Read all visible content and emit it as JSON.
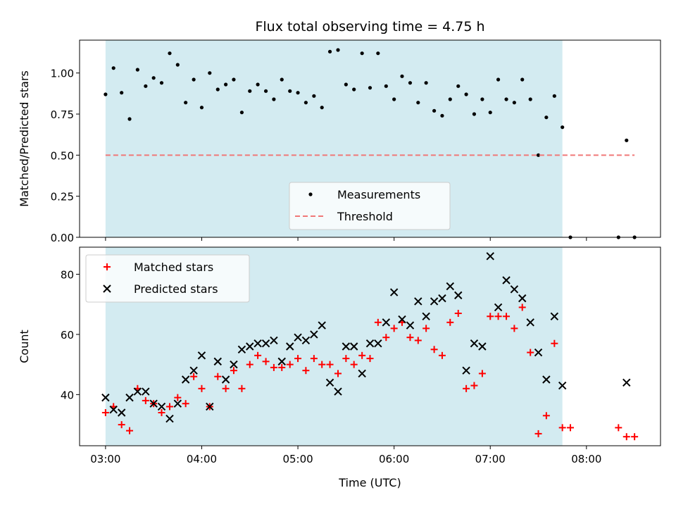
{
  "chart_data": [
    {
      "type": "scatter",
      "title": "Flux total observing time = 4.75 h",
      "xlabel": "",
      "ylabel": "Matched/Predicted stars",
      "xlim": [
        2.73,
        8.77
      ],
      "ylim": [
        0.0,
        1.2
      ],
      "yticks": [
        0.0,
        0.25,
        0.5,
        0.75,
        1.0
      ],
      "ytick_labels": [
        "0.00",
        "0.25",
        "0.50",
        "0.75",
        "1.00"
      ],
      "xticks": [
        3,
        4,
        5,
        6,
        7,
        8
      ],
      "shaded_span": [
        3.0,
        7.75
      ],
      "shaded_color": "#d3ebf1",
      "legend_position": "lower-center",
      "series": [
        {
          "name": "Measurements",
          "kind": "points",
          "color": "#000000",
          "x": [
            3.0,
            3.083,
            3.167,
            3.25,
            3.333,
            3.417,
            3.5,
            3.583,
            3.667,
            3.75,
            3.833,
            3.917,
            4.0,
            4.083,
            4.167,
            4.25,
            4.333,
            4.417,
            4.5,
            4.583,
            4.667,
            4.75,
            4.833,
            4.917,
            5.0,
            5.083,
            5.167,
            5.25,
            5.333,
            5.417,
            5.5,
            5.583,
            5.667,
            5.75,
            5.833,
            5.917,
            6.0,
            6.083,
            6.167,
            6.25,
            6.333,
            6.417,
            6.5,
            6.583,
            6.667,
            6.75,
            6.833,
            6.917,
            7.0,
            7.083,
            7.167,
            7.25,
            7.333,
            7.417,
            7.5,
            7.583,
            7.667,
            7.75,
            7.833,
            8.333,
            8.417,
            8.5
          ],
          "y": [
            0.87,
            1.03,
            0.88,
            0.72,
            1.02,
            0.92,
            0.97,
            0.94,
            1.12,
            1.05,
            0.82,
            0.96,
            0.79,
            1.0,
            0.9,
            0.93,
            0.96,
            0.76,
            0.89,
            0.93,
            0.89,
            0.84,
            0.96,
            0.89,
            0.88,
            0.82,
            0.86,
            0.79,
            1.13,
            1.14,
            0.93,
            0.9,
            1.12,
            0.91,
            1.12,
            0.92,
            0.84,
            0.98,
            0.94,
            0.82,
            0.94,
            0.77,
            0.74,
            0.84,
            0.92,
            0.87,
            0.75,
            0.84,
            0.76,
            0.96,
            0.84,
            0.82,
            0.96,
            0.84,
            0.5,
            0.73,
            0.86,
            0.67,
            0.0,
            0.0,
            0.59,
            0.0
          ]
        },
        {
          "name": "Threshold",
          "kind": "dashed-line",
          "color": "#f07878",
          "x": [
            3.0,
            8.5
          ],
          "y": [
            0.5,
            0.5
          ]
        }
      ]
    },
    {
      "type": "scatter",
      "title": "",
      "xlabel": "Time (UTC)",
      "ylabel": "Count",
      "xlim": [
        2.73,
        8.77
      ],
      "ylim": [
        23,
        89
      ],
      "yticks": [
        40,
        60,
        80
      ],
      "ytick_labels": [
        "40",
        "60",
        "80"
      ],
      "xticks": [
        3,
        4,
        5,
        6,
        7,
        8
      ],
      "xtick_labels": [
        "03:00",
        "04:00",
        "05:00",
        "06:00",
        "07:00",
        "08:00"
      ],
      "shaded_span": [
        3.0,
        7.75
      ],
      "shaded_color": "#d3ebf1",
      "legend_position": "upper-left",
      "series": [
        {
          "name": "Matched stars",
          "kind": "plus",
          "color": "#ff0000",
          "x": [
            3.0,
            3.083,
            3.167,
            3.25,
            3.333,
            3.417,
            3.5,
            3.583,
            3.667,
            3.75,
            3.833,
            3.917,
            4.0,
            4.083,
            4.167,
            4.25,
            4.333,
            4.417,
            4.5,
            4.583,
            4.667,
            4.75,
            4.833,
            4.917,
            5.0,
            5.083,
            5.167,
            5.25,
            5.333,
            5.417,
            5.5,
            5.583,
            5.667,
            5.75,
            5.833,
            5.917,
            6.0,
            6.083,
            6.167,
            6.25,
            6.333,
            6.417,
            6.5,
            6.583,
            6.667,
            6.75,
            6.833,
            6.917,
            7.0,
            7.083,
            7.167,
            7.25,
            7.333,
            7.417,
            7.5,
            7.583,
            7.667,
            7.75,
            7.833,
            8.333,
            8.417,
            8.5
          ],
          "y": [
            34,
            36,
            30,
            28,
            42,
            38,
            37,
            34,
            36,
            39,
            37,
            46,
            42,
            36,
            46,
            42,
            48,
            42,
            50,
            53,
            51,
            49,
            49,
            50,
            52,
            48,
            52,
            50,
            50,
            47,
            52,
            50,
            53,
            52,
            64,
            59,
            62,
            64,
            59,
            58,
            62,
            55,
            53,
            64,
            67,
            42,
            43,
            47,
            66,
            66,
            66,
            62,
            69,
            54,
            27,
            33,
            57,
            29,
            29,
            29,
            26,
            26
          ]
        },
        {
          "name": "Predicted stars",
          "kind": "cross",
          "color": "#000000",
          "x": [
            3.0,
            3.083,
            3.167,
            3.25,
            3.333,
            3.417,
            3.5,
            3.583,
            3.667,
            3.75,
            3.833,
            3.917,
            4.0,
            4.083,
            4.167,
            4.25,
            4.333,
            4.417,
            4.5,
            4.583,
            4.667,
            4.75,
            4.833,
            4.917,
            5.0,
            5.083,
            5.167,
            5.25,
            5.333,
            5.417,
            5.5,
            5.583,
            5.667,
            5.75,
            5.833,
            5.917,
            6.0,
            6.083,
            6.167,
            6.25,
            6.333,
            6.417,
            6.5,
            6.583,
            6.667,
            6.75,
            6.833,
            6.917,
            7.0,
            7.083,
            7.167,
            7.25,
            7.333,
            7.417,
            7.5,
            7.583,
            7.667,
            7.75,
            8.417
          ],
          "y": [
            39,
            35,
            34,
            39,
            41,
            41,
            37,
            36,
            32,
            37,
            45,
            48,
            53,
            36,
            51,
            45,
            50,
            55,
            56,
            57,
            57,
            58,
            51,
            56,
            59,
            58,
            60,
            63,
            44,
            41,
            56,
            56,
            47,
            57,
            57,
            64,
            74,
            65,
            63,
            71,
            66,
            71,
            72,
            76,
            73,
            48,
            57,
            56,
            86,
            69,
            78,
            75,
            72,
            64,
            54,
            45,
            66,
            43,
            44
          ]
        }
      ]
    }
  ]
}
